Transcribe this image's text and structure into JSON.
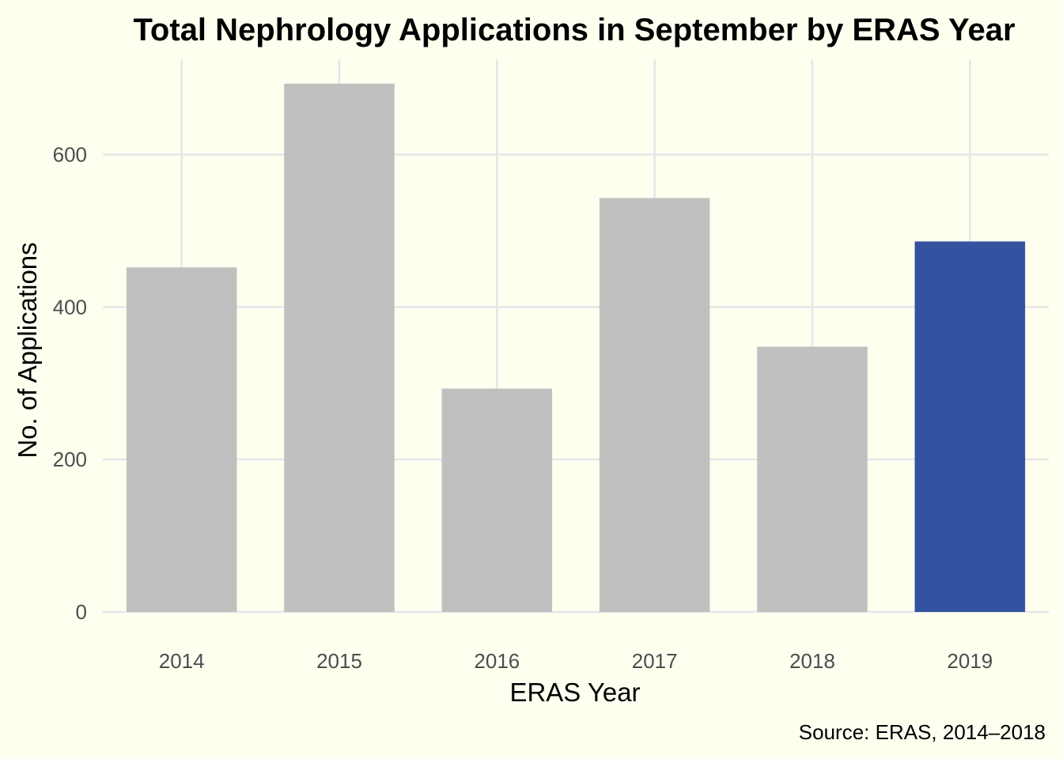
{
  "chart_data": {
    "type": "bar",
    "title": "Total Nephrology Applications in September by ERAS Year",
    "xlabel": "ERAS Year",
    "ylabel": "No. of Applications",
    "caption": "Source: ERAS, 2014–2018",
    "categories": [
      "2014",
      "2015",
      "2016",
      "2017",
      "2018",
      "2019"
    ],
    "values": [
      452,
      693,
      293,
      543,
      348,
      486
    ],
    "bar_colors": [
      "#C0C0C0",
      "#C0C0C0",
      "#C0C0C0",
      "#C0C0C0",
      "#C0C0C0",
      "#3352A0"
    ],
    "highlight_category": "2019",
    "y_ticks": [
      0,
      200,
      400,
      600
    ],
    "y_tick_labels": [
      "0",
      "200",
      "400",
      "600"
    ],
    "ylim": [
      0,
      725
    ],
    "grid": true,
    "legend": "none",
    "colors": {
      "background": "#FFFFF0",
      "grid": "#E6E6EA",
      "bar_default": "#C0C0C0",
      "bar_highlight": "#3352A0"
    }
  }
}
